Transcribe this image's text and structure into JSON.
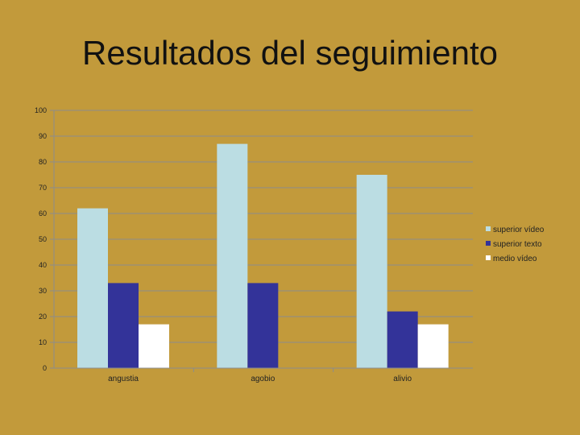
{
  "title": "Resultados del seguimiento",
  "chart_data": {
    "type": "bar",
    "title": "Resultados del seguimiento",
    "categories": [
      "angustia",
      "agobio",
      "alivio"
    ],
    "series": [
      {
        "name": "superior vídeo",
        "values": [
          62,
          87,
          75
        ],
        "color": "#BBDDE3"
      },
      {
        "name": "superior texto",
        "values": [
          33,
          33,
          22
        ],
        "color": "#333399"
      },
      {
        "name": "medio vídeo",
        "values": [
          17,
          null,
          17
        ],
        "color": "#FFFFFF"
      }
    ],
    "ylim": [
      0,
      100
    ],
    "yticks": [
      0,
      10,
      20,
      30,
      40,
      50,
      60,
      70,
      80,
      90,
      100
    ],
    "grid": true,
    "legend": "right"
  }
}
